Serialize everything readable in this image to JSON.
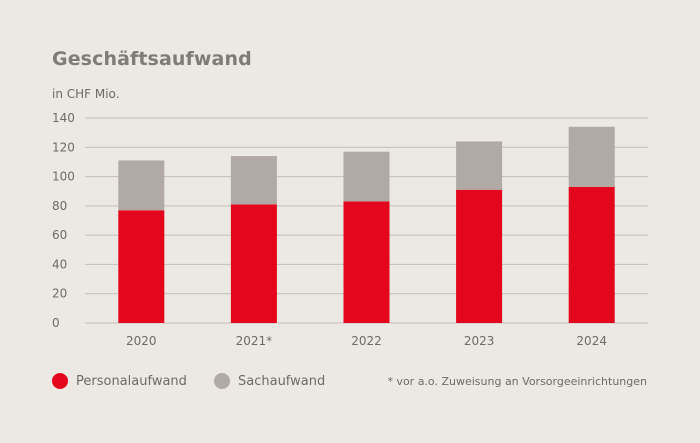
{
  "chart_data": {
    "type": "bar",
    "stacked": true,
    "title": "Geschäftsaufwand",
    "ylabel": "in CHF Mio.",
    "categories": [
      "2020",
      "2021*",
      "2022",
      "2023",
      "2024"
    ],
    "series": [
      {
        "name": "Personalaufwand",
        "color": "#e4061c",
        "values": [
          77,
          81,
          83,
          91,
          93
        ]
      },
      {
        "name": "Sachaufwand",
        "color": "#b1a9a3",
        "values": [
          34,
          33,
          34,
          33,
          41
        ]
      }
    ],
    "ylim": [
      0,
      140
    ],
    "yticks": [
      0,
      20,
      40,
      60,
      80,
      100,
      120,
      140
    ],
    "grid": true,
    "legend_position": "bottom-left",
    "footnote": "* vor a.o. Zuweisung an Vorsorgeeinrichtungen"
  }
}
